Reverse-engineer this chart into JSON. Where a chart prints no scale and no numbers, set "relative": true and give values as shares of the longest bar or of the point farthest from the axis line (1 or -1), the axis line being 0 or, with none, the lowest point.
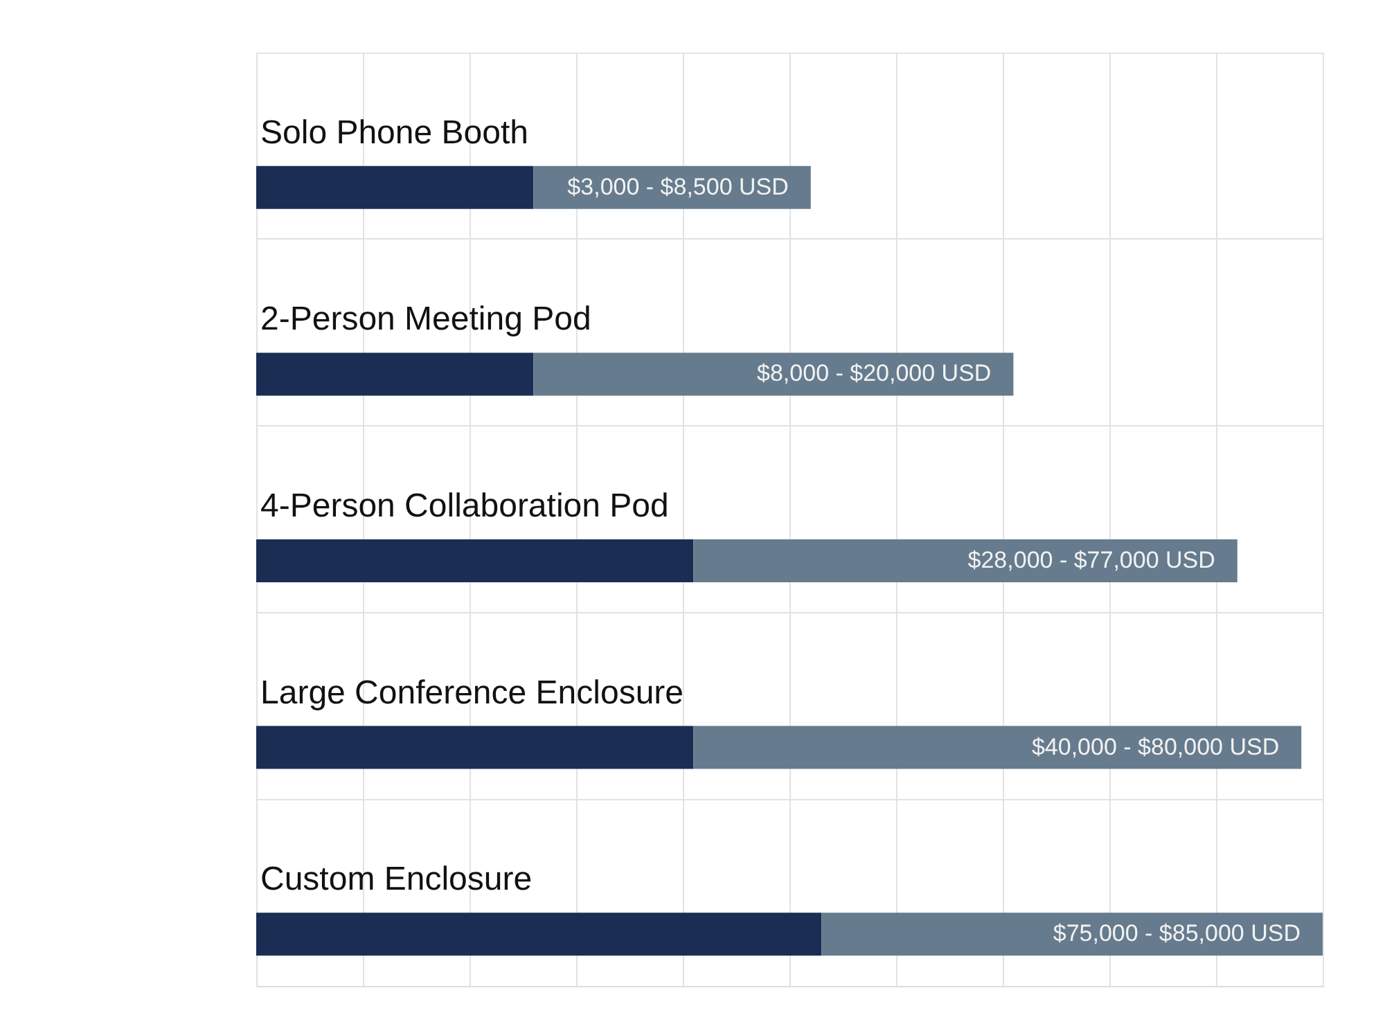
{
  "chart_data": {
    "type": "bar",
    "orientation": "horizontal",
    "stacked": true,
    "relative": true,
    "grid": true,
    "categories": [
      "Solo Phone Booth",
      "2-Person Meeting Pod",
      "4-Person Collaboration Pod",
      "Large Conference Enclosure",
      "Custom Enclosure"
    ],
    "series": [
      {
        "color": "#1b2d52",
        "values": [
          0.26,
          0.26,
          0.41,
          0.41,
          0.53
        ]
      },
      {
        "color": "#667b8d",
        "values": [
          0.26,
          0.45,
          0.51,
          0.57,
          0.47
        ]
      }
    ],
    "annotations": [
      {
        "text": "$3,000 - $8,500 USD",
        "x": 0.52,
        "y": "Solo Phone Booth"
      },
      {
        "text": "$8,000 - $20,000 USD",
        "x": 0.71,
        "y": "2-Person Meeting Pod"
      },
      {
        "text": "$28,000 - $77,000 USD",
        "x": 0.92,
        "y": "4-Person Collaboration Pod"
      },
      {
        "text": "$40,000 - $80,000 USD",
        "x": 0.98,
        "y": "Large Conference Enclosure"
      },
      {
        "text": "$75,000 - $85,000 USD",
        "x": 1.0,
        "y": "Custom Enclosure"
      }
    ]
  }
}
